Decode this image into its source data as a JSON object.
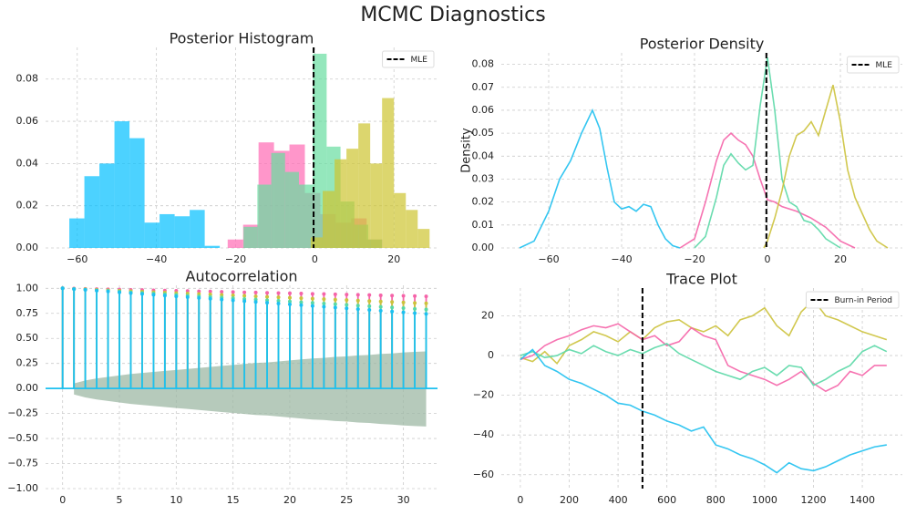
{
  "title": "MCMC Diagnostics",
  "chart_data": [
    {
      "type": "histogram",
      "title": "Posterior Histogram",
      "xlim": [
        -68,
        31
      ],
      "ylim": [
        0,
        0.095
      ],
      "xticks": [
        {
          "value": -60,
          "label": "−60"
        },
        {
          "value": -40,
          "label": "−40"
        },
        {
          "value": -20,
          "label": "−20"
        },
        0,
        20
      ],
      "yticks": [
        {
          "value": 0,
          "label": "0.00"
        },
        {
          "value": 0.02,
          "label": "0.02"
        },
        {
          "value": 0.04,
          "label": "0.04"
        },
        {
          "value": 0.06,
          "label": "0.06"
        },
        {
          "value": 0.08,
          "label": "0.08"
        }
      ],
      "grid": true,
      "legend": "upper right",
      "vline": {
        "label": "MLE",
        "value": -0.3
      },
      "series": [
        {
          "color": "#00bfff",
          "bins": [
            -62,
            -58.2,
            -54.4,
            -50.6,
            -46.8,
            -43,
            -39.2,
            -35.4,
            -31.6,
            -27.8,
            -24
          ],
          "values": [
            0.014,
            0.034,
            0.04,
            0.06,
            0.052,
            0.012,
            0.016,
            0.015,
            0.018,
            0.001
          ]
        },
        {
          "color": "#ff69b4",
          "bins": [
            -22,
            -18.1,
            -14.2,
            -10.3,
            -6.4,
            -2.5,
            1.4,
            5.3,
            9.2,
            13.1,
            17
          ],
          "values": [
            0.004,
            0.011,
            0.05,
            0.046,
            0.049,
            0.026,
            0.016,
            0.012,
            0.014,
            0.004
          ]
        },
        {
          "color": "#66dda0",
          "bins": [
            -18,
            -14.5,
            -11,
            -7.5,
            -4,
            -0.5,
            3,
            6.5,
            10,
            13.5,
            17
          ],
          "values": [
            0.01,
            0.03,
            0.045,
            0.036,
            0.03,
            0.092,
            0.048,
            0.022,
            0.011,
            0.004
          ]
        },
        {
          "color": "#cdc430",
          "bins": [
            -1,
            2,
            5,
            8,
            11,
            14,
            17,
            20,
            23,
            26,
            29
          ],
          "values": [
            0.005,
            0.027,
            0.042,
            0.047,
            0.059,
            0.04,
            0.071,
            0.026,
            0.018,
            0.009
          ]
        }
      ]
    },
    {
      "type": "line",
      "title": "Posterior Density",
      "ylabel": "Density",
      "xlim": [
        -73,
        37
      ],
      "ylim": [
        0,
        0.085
      ],
      "xticks": [
        {
          "value": -60,
          "label": "−60"
        },
        {
          "value": -40,
          "label": "−40"
        },
        {
          "value": -20,
          "label": "−20"
        },
        0,
        20
      ],
      "yticks": [
        {
          "value": 0,
          "label": "0.00"
        },
        {
          "value": 0.01,
          "label": "0.01"
        },
        {
          "value": 0.02,
          "label": "0.02"
        },
        {
          "value": 0.03,
          "label": "0.03"
        },
        {
          "value": 0.04,
          "label": "0.04"
        },
        {
          "value": 0.05,
          "label": "0.05"
        },
        {
          "value": 0.06,
          "label": "0.06"
        },
        {
          "value": 0.07,
          "label": "0.07"
        },
        {
          "value": 0.08,
          "label": "0.08"
        }
      ],
      "grid": true,
      "legend": "upper right",
      "vline": {
        "label": "MLE",
        "value": -0.3
      },
      "series": [
        {
          "color": "#1ec0f0",
          "x": [
            -68,
            -64,
            -60,
            -57,
            -54,
            -51,
            -48,
            -46,
            -44,
            -42,
            -40,
            -38,
            -36,
            -34,
            -32,
            -30,
            -28,
            -26,
            -24
          ],
          "values": [
            0,
            0.003,
            0.016,
            0.03,
            0.038,
            0.05,
            0.06,
            0.052,
            0.035,
            0.02,
            0.017,
            0.018,
            0.016,
            0.019,
            0.018,
            0.01,
            0.004,
            0.001,
            0
          ]
        },
        {
          "color": "#f564a9",
          "x": [
            -24,
            -20,
            -17,
            -14,
            -12,
            -10,
            -8,
            -6,
            -4,
            -2,
            0,
            2,
            4,
            8,
            12,
            16,
            20,
            24
          ],
          "values": [
            0,
            0.004,
            0.02,
            0.038,
            0.047,
            0.05,
            0.047,
            0.045,
            0.04,
            0.03,
            0.021,
            0.02,
            0.018,
            0.016,
            0.013,
            0.009,
            0.003,
            0
          ]
        },
        {
          "color": "#5ad8a6",
          "x": [
            -20,
            -17,
            -14,
            -12,
            -10,
            -8,
            -6,
            -4,
            -2,
            0,
            2,
            4,
            6,
            8,
            10,
            12,
            14,
            16,
            20
          ],
          "values": [
            0,
            0.005,
            0.022,
            0.036,
            0.041,
            0.037,
            0.034,
            0.036,
            0.062,
            0.083,
            0.06,
            0.03,
            0.02,
            0.018,
            0.012,
            0.011,
            0.008,
            0.004,
            0
          ]
        },
        {
          "color": "#ccc23c",
          "x": [
            -1,
            0,
            2,
            4,
            6,
            8,
            10,
            12,
            14,
            16,
            18,
            20,
            22,
            24,
            26,
            28,
            30,
            33
          ],
          "values": [
            0,
            0.003,
            0.013,
            0.025,
            0.04,
            0.049,
            0.051,
            0.055,
            0.049,
            0.06,
            0.071,
            0.055,
            0.034,
            0.022,
            0.015,
            0.008,
            0.003,
            0
          ]
        }
      ]
    },
    {
      "type": "stem",
      "title": "Autocorrelation",
      "xlim": [
        -1.5,
        33
      ],
      "ylim": [
        -1,
        1.03
      ],
      "xticks": [
        0,
        5,
        10,
        15,
        20,
        25,
        30
      ],
      "yticks": [
        {
          "value": -1,
          "label": "−1.00"
        },
        {
          "value": -0.75,
          "label": "−0.75"
        },
        {
          "value": -0.5,
          "label": "−0.50"
        },
        {
          "value": -0.25,
          "label": "−0.25"
        },
        {
          "value": 0,
          "label": "0.00"
        },
        {
          "value": 0.25,
          "label": "0.25"
        },
        {
          "value": 0.5,
          "label": "0.50"
        },
        {
          "value": 0.75,
          "label": "0.75"
        },
        {
          "value": 1,
          "label": "1.00"
        }
      ],
      "grid": true,
      "x": [
        0,
        1,
        2,
        3,
        4,
        5,
        6,
        7,
        8,
        9,
        10,
        11,
        12,
        13,
        14,
        15,
        16,
        17,
        18,
        19,
        20,
        21,
        22,
        23,
        24,
        25,
        26,
        27,
        28,
        29,
        30,
        31,
        32
      ],
      "band": {
        "color": "#9db8a4",
        "upper": [
          null,
          0.05,
          0.08,
          0.1,
          0.115,
          0.13,
          0.145,
          0.155,
          0.165,
          0.175,
          0.185,
          0.195,
          0.205,
          0.215,
          0.225,
          0.235,
          0.245,
          0.255,
          0.26,
          0.27,
          0.28,
          0.29,
          0.3,
          0.305,
          0.315,
          0.32,
          0.33,
          0.335,
          0.345,
          0.35,
          0.36,
          0.365,
          0.37
        ],
        "lower": [
          null,
          -0.06,
          -0.09,
          -0.11,
          -0.125,
          -0.14,
          -0.155,
          -0.165,
          -0.175,
          -0.185,
          -0.195,
          -0.205,
          -0.215,
          -0.225,
          -0.235,
          -0.245,
          -0.255,
          -0.265,
          -0.27,
          -0.28,
          -0.29,
          -0.3,
          -0.31,
          -0.315,
          -0.325,
          -0.33,
          -0.34,
          -0.345,
          -0.355,
          -0.36,
          -0.37,
          -0.375,
          -0.38
        ]
      },
      "series": [
        {
          "color": "#f564a9",
          "values": [
            1,
            0.998,
            0.995,
            0.993,
            0.99,
            0.988,
            0.985,
            0.983,
            0.98,
            0.978,
            0.975,
            0.973,
            0.97,
            0.968,
            0.965,
            0.963,
            0.96,
            0.958,
            0.955,
            0.953,
            0.95,
            0.948,
            0.945,
            0.943,
            0.94,
            0.938,
            0.935,
            0.933,
            0.93,
            0.928,
            0.925,
            0.923,
            0.92
          ]
        },
        {
          "color": "#ccc23c",
          "values": [
            1,
            0.995,
            0.991,
            0.986,
            0.981,
            0.977,
            0.972,
            0.967,
            0.962,
            0.958,
            0.953,
            0.948,
            0.944,
            0.939,
            0.934,
            0.93,
            0.925,
            0.92,
            0.915,
            0.911,
            0.906,
            0.901,
            0.897,
            0.892,
            0.887,
            0.883,
            0.878,
            0.873,
            0.868,
            0.864,
            0.859,
            0.854,
            0.85
          ]
        },
        {
          "color": "#5ad8a6",
          "values": [
            1,
            0.993,
            0.987,
            0.98,
            0.974,
            0.967,
            0.96,
            0.954,
            0.947,
            0.941,
            0.934,
            0.927,
            0.921,
            0.914,
            0.908,
            0.901,
            0.894,
            0.888,
            0.881,
            0.875,
            0.868,
            0.861,
            0.855,
            0.848,
            0.842,
            0.835,
            0.828,
            0.822,
            0.815,
            0.809,
            0.802,
            0.795,
            0.789
          ]
        },
        {
          "color": "#1ec0f0",
          "values": [
            1,
            0.992,
            0.984,
            0.976,
            0.968,
            0.96,
            0.952,
            0.944,
            0.936,
            0.928,
            0.92,
            0.912,
            0.904,
            0.896,
            0.888,
            0.88,
            0.872,
            0.864,
            0.856,
            0.848,
            0.84,
            0.832,
            0.824,
            0.816,
            0.808,
            0.8,
            0.792,
            0.784,
            0.776,
            0.768,
            0.76,
            0.752,
            0.744
          ]
        }
      ]
    },
    {
      "type": "line",
      "title": "Trace Plot",
      "xlim": [
        -78,
        1564
      ],
      "ylim": [
        -67,
        34
      ],
      "xticks": [
        0,
        200,
        400,
        600,
        800,
        1000,
        1200,
        1400
      ],
      "yticks": [
        {
          "value": -60,
          "label": "−60"
        },
        {
          "value": -40,
          "label": "−40"
        },
        {
          "value": -20,
          "label": "−20"
        },
        0,
        20
      ],
      "grid": true,
      "legend": "upper right",
      "vline": {
        "label": "Burn-in Period",
        "value": 500
      },
      "x": [
        0,
        50,
        100,
        150,
        200,
        250,
        300,
        350,
        400,
        450,
        500,
        550,
        600,
        650,
        700,
        750,
        800,
        850,
        900,
        950,
        1000,
        1050,
        1100,
        1150,
        1200,
        1250,
        1300,
        1350,
        1400,
        1450,
        1500
      ],
      "series": [
        {
          "color": "#ccc23c",
          "values": [
            -1,
            -3,
            2,
            -4,
            5,
            8,
            12,
            10,
            7,
            12,
            8,
            14,
            17,
            18,
            14,
            12,
            15,
            10,
            18,
            20,
            24,
            15,
            10,
            22,
            28,
            20,
            18,
            15,
            12,
            10,
            8
          ]
        },
        {
          "color": "#f564a9",
          "values": [
            -2,
            0,
            5,
            8,
            10,
            13,
            15,
            14,
            16,
            12,
            8,
            10,
            5,
            7,
            14,
            10,
            8,
            -5,
            -8,
            -10,
            -12,
            -15,
            -12,
            -8,
            -14,
            -18,
            -15,
            -8,
            -10,
            -5,
            -5
          ]
        },
        {
          "color": "#5ad8a6",
          "values": [
            0,
            2,
            -1,
            0,
            3,
            1,
            5,
            2,
            0,
            3,
            1,
            4,
            6,
            1,
            -2,
            -5,
            -8,
            -10,
            -12,
            -8,
            -6,
            -10,
            -5,
            -6,
            -15,
            -12,
            -8,
            -5,
            2,
            5,
            2
          ]
        },
        {
          "color": "#1ec0f0",
          "values": [
            -2,
            3,
            -5,
            -8,
            -12,
            -14,
            -17,
            -20,
            -24,
            -25,
            -28,
            -30,
            -33,
            -35,
            -38,
            -36,
            -45,
            -47,
            -50,
            -52,
            -55,
            -59,
            -54,
            -57,
            -58,
            -56,
            -53,
            -50,
            -48,
            -46,
            -45
          ]
        }
      ]
    }
  ]
}
